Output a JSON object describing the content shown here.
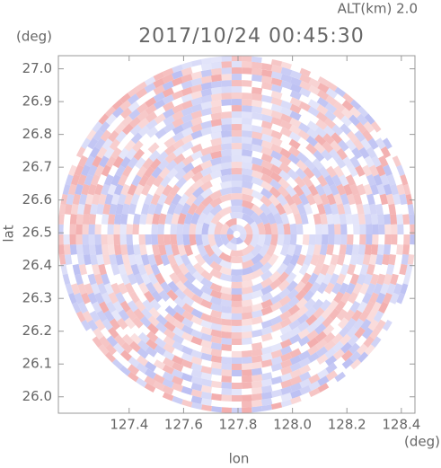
{
  "chart_data": {
    "type": "radar-ppi",
    "altitude_label": "ALT(km) 2.0",
    "title": "2017/10/24 00:45:30",
    "y_unit": "(deg)",
    "x_unit": "(deg)",
    "x_label": "lon",
    "y_label": "lat",
    "xlim": [
      127.14,
      128.45
    ],
    "ylim": [
      25.95,
      27.04
    ],
    "xticks": [
      127.4,
      127.6,
      127.8,
      {
        "value": 128,
        "label": "128.0"
      },
      128.2,
      128.4
    ],
    "yticks": [
      {
        "value": 26,
        "label": "26.0"
      },
      26.1,
      26.2,
      26.3,
      26.4,
      26.5,
      26.6,
      26.7,
      26.8,
      26.9,
      {
        "value": 27,
        "label": "27.0"
      }
    ],
    "colors": [
      "#f2a9a9",
      "#b9bdf2"
    ]
  }
}
